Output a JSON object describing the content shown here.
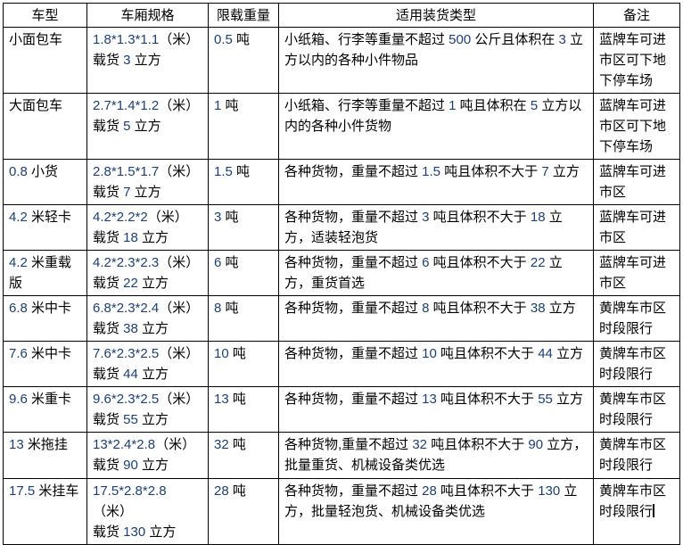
{
  "document": {
    "colors": {
      "body_text": "#000000",
      "number_text": "#1c3f77",
      "border": "#000000",
      "background": "#ffffff"
    },
    "table": {
      "headers": [
        "车型",
        "车厢规格",
        "限载重量",
        "适用装货类型",
        "备注"
      ],
      "rows": [
        {
          "vehicle": "小面包车",
          "spec": "1.8*1.3*1.1（米）\n载货 3 立方",
          "limit": "0.5 吨",
          "cargo": "小纸箱、行李等重量不超过 500 公斤且体积在 3 立方以内的各种小件物品",
          "note": "蓝牌车可进市区可下地下停车场"
        },
        {
          "vehicle": "大面包车",
          "spec": "2.7*1.4*1.2（米）\n载货 5 立方",
          "limit": "1 吨",
          "cargo": "小纸箱、行李等重量不超过 1 吨且体积在 5 立方以内的各种小件货物",
          "note": "蓝牌车可进市区可下地下停车场"
        },
        {
          "vehicle": "0.8 小货",
          "spec": "2.8*1.5*1.7（米）\n载货 7 立方",
          "limit": "1.5 吨",
          "cargo": "各种货物，重量不超过 1.5 吨且体积不大于 7 立方",
          "note": "蓝牌车可进市区"
        },
        {
          "vehicle": "4.2 米轻卡",
          "spec": "4.2*2.2*2（米）\n载货 18 立方",
          "limit": "3 吨",
          "cargo": "各种货物，重量不超过 3 吨且体积不大于 18 立方，适装轻泡货",
          "note": "蓝牌车可进市区"
        },
        {
          "vehicle": "4.2 米重载版",
          "spec": "4.2*2.3*2.3（米）\n载货 22 立方",
          "limit": "6 吨",
          "cargo": "各种货物，重量不超过 6 吨且体积不大于 22 立方，重货首选",
          "note": "蓝牌车可进市区"
        },
        {
          "vehicle": "6.8 米中卡",
          "spec": "6.8*2.3*2.4（米）\n载货 38 立方",
          "limit": "8 吨",
          "cargo": "各种货物，重量不超过 8 吨且体积不大于 38 立方",
          "note": "黄牌车市区时段限行"
        },
        {
          "vehicle": "7.6 米中卡",
          "spec": "7.6*2.3*2.5（米）\n载货 44 立方",
          "limit": "10 吨",
          "cargo": "各种货物，重量不超过 10 吨且体积不大于 44 立方",
          "note": "黄牌车市区时段限行"
        },
        {
          "vehicle": "9.6 米重卡",
          "spec": "9.6*2.3*2.5（米）\n载货 55 立方",
          "limit": "13 吨",
          "cargo": "各种货物，重量不超过 13 吨且体积不大于 55 立方",
          "note": "黄牌车市区时段限行"
        },
        {
          "vehicle": "13 米拖挂",
          "spec": "13*2.4*2.8（米）\n载货 90 立方",
          "limit": "32 吨",
          "cargo": "各种货物,重量不超过 32 吨且体积不大于 90 立方，批量重货、机械设备类优选",
          "note": "黄牌车市区时段限行"
        },
        {
          "vehicle": "17.5 米挂车",
          "spec": "17.5*2.8*2.8（米）\n载货 130 立方",
          "limit": "28 吨",
          "cargo": "各种货物，重量不超过 28 吨且体积不大于 130 立方，批量轻泡货、机械设备类优选",
          "note": "黄牌车市区时段限行"
        }
      ]
    }
  }
}
